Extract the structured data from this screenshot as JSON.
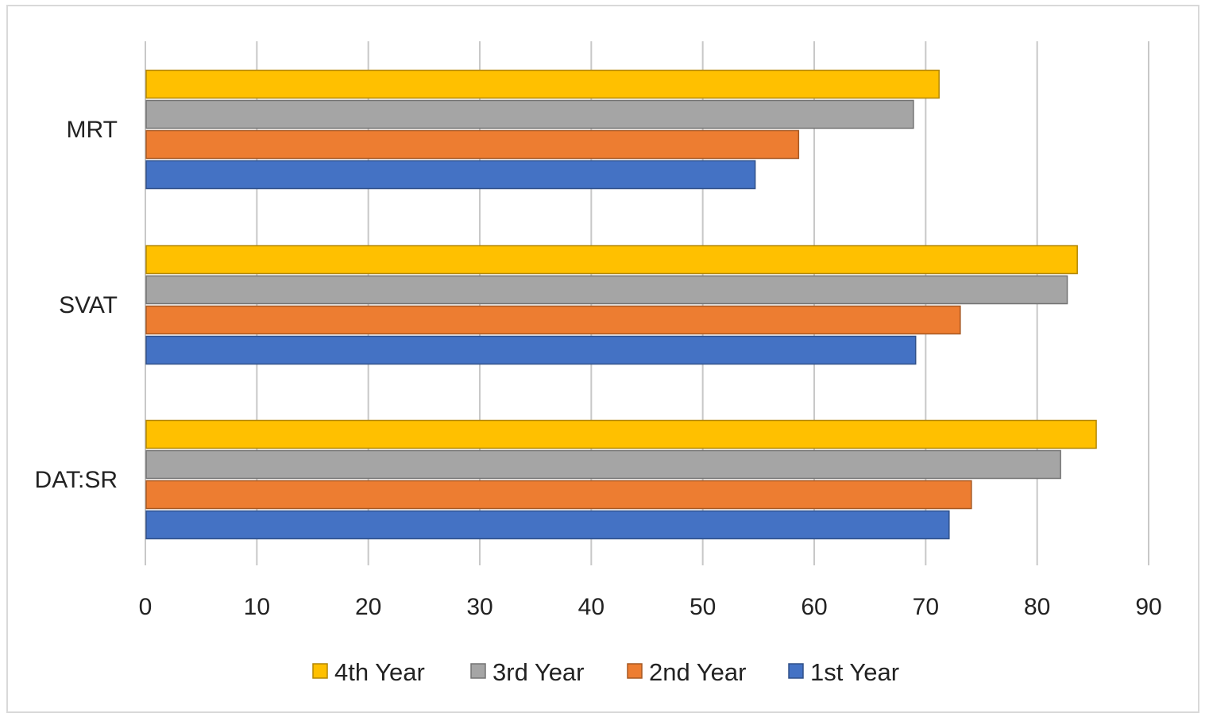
{
  "chart_data": {
    "type": "bar",
    "orientation": "horizontal",
    "categories": [
      "MRT",
      "SVAT",
      "DAT:SR"
    ],
    "series": [
      {
        "name": "4th Year",
        "color": "#FFC000",
        "values": [
          71.2,
          83.6,
          85.3
        ]
      },
      {
        "name": "3rd Year",
        "color": "#A5A5A5",
        "values": [
          68.9,
          82.7,
          82.1
        ]
      },
      {
        "name": "2nd Year",
        "color": "#ED7D31",
        "values": [
          58.6,
          73.1,
          74.1
        ]
      },
      {
        "name": "1st Year",
        "color": "#4472C4",
        "values": [
          54.7,
          69.1,
          72.1
        ]
      }
    ],
    "xlim": [
      0,
      90
    ],
    "xticks": [
      0,
      10,
      20,
      30,
      40,
      50,
      60,
      70,
      80,
      90
    ],
    "title": "",
    "xlabel": "",
    "ylabel": "",
    "grid": "vertical",
    "legend_position": "bottom"
  }
}
